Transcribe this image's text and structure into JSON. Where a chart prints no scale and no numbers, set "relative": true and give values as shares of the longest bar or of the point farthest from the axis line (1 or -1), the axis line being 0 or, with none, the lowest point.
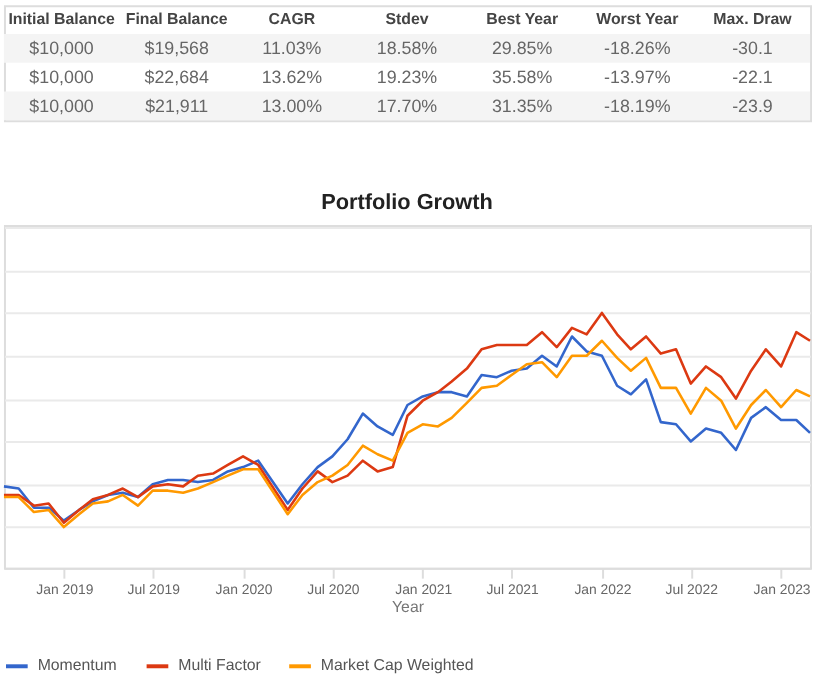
{
  "chart_data": [
    {
      "type": "other",
      "categories": [
        "Initial Balance",
        "Final Balance",
        "CAGR",
        "Stdev",
        "Best Year",
        "Worst Year",
        "Max. Draw"
      ],
      "cell_labels": [
        [
          "$10,000",
          "$19,568",
          "11.03%",
          "18.58%",
          "29.85%",
          "-18.26%",
          "-30.1"
        ],
        [
          "$10,000",
          "$22,684",
          "13.62%",
          "19.23%",
          "35.58%",
          "-13.97%",
          "-22.1"
        ],
        [
          "$10,000",
          "$21,911",
          "13.00%",
          "17.70%",
          "31.35%",
          "-18.19%",
          "-23.9"
        ]
      ]
    },
    {
      "type": "line",
      "title": "Portfolio Growth",
      "xlabel": "Year",
      "relative": true,
      "grid": "y",
      "legend": "bottom",
      "marker": "none",
      "line_style": "solid",
      "x": [
        "2018-09",
        "2018-10",
        "2018-11",
        "2018-12",
        "2019-01",
        "2019-02",
        "2019-03",
        "2019-04",
        "2019-05",
        "2019-06",
        "2019-07",
        "2019-08",
        "2019-09",
        "2019-10",
        "2019-11",
        "2019-12",
        "2020-01",
        "2020-02",
        "2020-04",
        "2020-05",
        "2020-06",
        "2020-07",
        "2020-08",
        "2020-09",
        "2020-10",
        "2020-11",
        "2020-12",
        "2021-01",
        "2021-02",
        "2021-03",
        "2021-04",
        "2021-05",
        "2021-06",
        "2021-07",
        "2021-08",
        "2021-09",
        "2021-10",
        "2021-11",
        "2021-12",
        "2022-01",
        "2022-02",
        "2022-03",
        "2022-04",
        "2022-05",
        "2022-06",
        "2022-07",
        "2022-08",
        "2022-09",
        "2022-10",
        "2022-11",
        "2022-12",
        "2023-01",
        "2023-02",
        "2023-03"
      ],
      "xlim": [
        "2018-09",
        "2023-03"
      ],
      "xticks": [
        {
          "value": "2019-01",
          "label": "Jan 2019"
        },
        {
          "value": "2019-07",
          "label": "Jul 2019"
        },
        {
          "value": "2020-01",
          "label": "Jan 2020"
        },
        {
          "value": "2020-07",
          "label": "Jul 2020"
        },
        {
          "value": "2021-01",
          "label": "Jan 2021"
        },
        {
          "value": "2021-07",
          "label": "Jul 2021"
        },
        {
          "value": "2022-01",
          "label": "Jan 2022"
        },
        {
          "value": "2022-07",
          "label": "Jul 2022"
        },
        {
          "value": "2023-01",
          "label": "Jan 2023"
        }
      ],
      "series": [
        {
          "name": "Momentum",
          "color": "#3366cc",
          "values": [
            0.19,
            0.18,
            0.09,
            0.09,
            0.03,
            0.08,
            0.12,
            0.15,
            0.16,
            0.14,
            0.2,
            0.22,
            0.22,
            0.21,
            0.22,
            0.26,
            0.28,
            0.31,
            0.11,
            0.2,
            0.28,
            0.33,
            0.41,
            0.53,
            0.47,
            0.43,
            0.57,
            0.61,
            0.63,
            0.63,
            0.61,
            0.71,
            0.7,
            0.73,
            0.74,
            0.8,
            0.75,
            0.89,
            0.82,
            0.8,
            0.66,
            0.62,
            0.69,
            0.49,
            0.48,
            0.4,
            0.46,
            0.44,
            0.36,
            0.51,
            0.56,
            0.5,
            0.5,
            0.44
          ]
        },
        {
          "name": "Multi Factor",
          "color": "#dc3912",
          "values": [
            0.15,
            0.15,
            0.1,
            0.11,
            0.02,
            0.08,
            0.13,
            0.15,
            0.18,
            0.14,
            0.19,
            0.2,
            0.19,
            0.24,
            0.25,
            0.29,
            0.33,
            0.29,
            0.08,
            0.18,
            0.26,
            0.21,
            0.24,
            0.31,
            0.26,
            0.28,
            0.52,
            0.59,
            0.63,
            0.68,
            0.74,
            0.83,
            0.85,
            0.85,
            0.85,
            0.91,
            0.84,
            0.93,
            0.9,
            1.0,
            0.9,
            0.83,
            0.89,
            0.81,
            0.83,
            0.67,
            0.75,
            0.7,
            0.6,
            0.73,
            0.83,
            0.75,
            0.91,
            0.87
          ]
        },
        {
          "name": "Market Cap Weighted",
          "color": "#ff9900",
          "values": [
            0.14,
            0.14,
            0.07,
            0.08,
            0.0,
            0.06,
            0.11,
            0.12,
            0.15,
            0.1,
            0.17,
            0.17,
            0.16,
            0.18,
            0.21,
            0.24,
            0.27,
            0.27,
            0.06,
            0.15,
            0.21,
            0.24,
            0.29,
            0.38,
            0.34,
            0.31,
            0.44,
            0.48,
            0.47,
            0.51,
            0.58,
            0.65,
            0.66,
            0.71,
            0.76,
            0.77,
            0.7,
            0.8,
            0.8,
            0.87,
            0.79,
            0.73,
            0.79,
            0.65,
            0.65,
            0.53,
            0.65,
            0.59,
            0.46,
            0.57,
            0.64,
            0.56,
            0.64,
            0.61
          ]
        }
      ]
    }
  ]
}
